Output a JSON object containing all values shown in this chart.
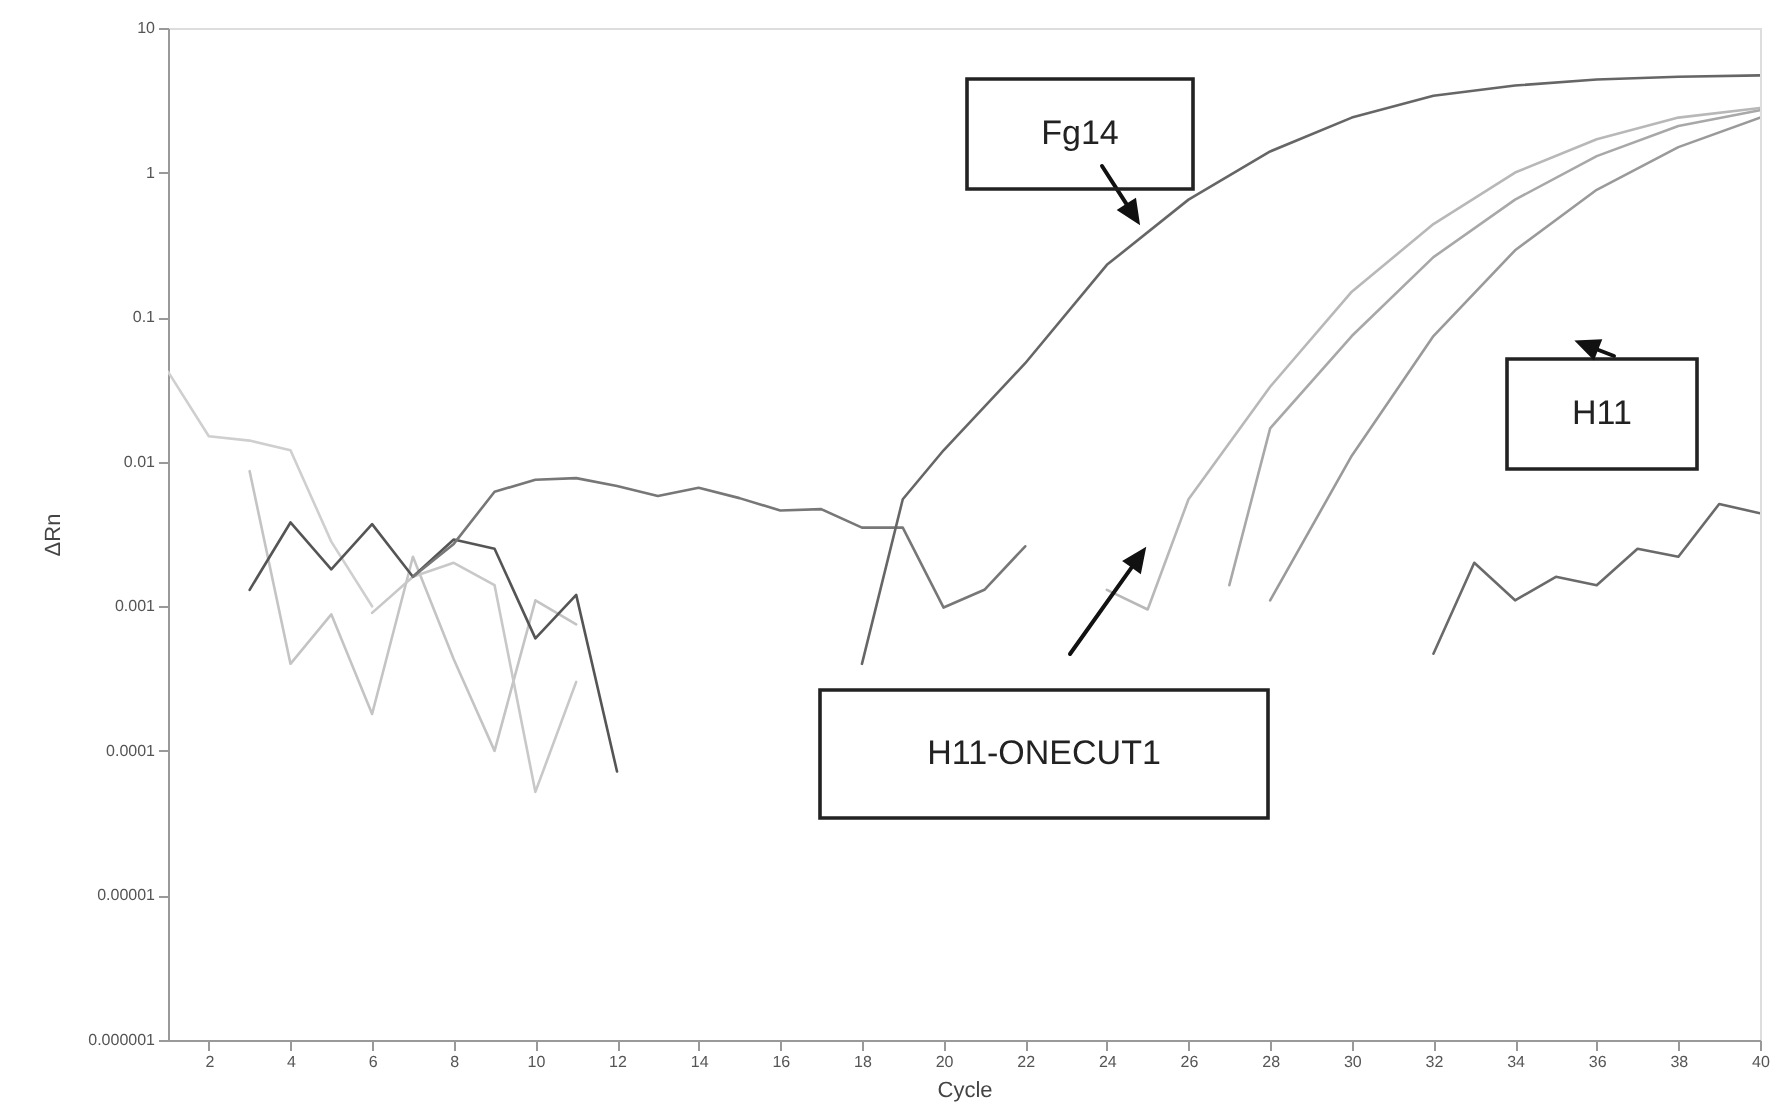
{
  "chart_data": {
    "type": "line",
    "xlabel": "Cycle",
    "ylabel": "ΔRn",
    "log": "y",
    "xlim": [
      1,
      40
    ],
    "xticks": [
      2,
      4,
      6,
      8,
      10,
      12,
      14,
      16,
      18,
      20,
      22,
      24,
      26,
      28,
      30,
      32,
      34,
      36,
      38,
      40
    ],
    "ylim": [
      1e-06,
      10
    ],
    "yticks": [
      {
        "value": 1e-06,
        "label": "0.000001"
      },
      {
        "value": 1e-05,
        "label": "0.00001"
      },
      0.0001,
      0.001,
      0.01,
      0.1,
      1,
      10
    ],
    "grid": false,
    "marker": "none",
    "line_style": "solid",
    "series": [
      {
        "color": "#cfcfcf",
        "x": [
          1,
          2,
          3,
          4,
          5,
          6
        ],
        "values": [
          0.042,
          0.015,
          0.014,
          0.012,
          0.0028,
          0.001
        ]
      },
      {
        "color": "#c4c4c4",
        "x": [
          3,
          4,
          5,
          6,
          7,
          8,
          9,
          10,
          11
        ],
        "values": [
          0.0086,
          0.0004,
          0.00088,
          0.00018,
          0.0022,
          0.00043,
          0.0001,
          0.0011,
          0.00075
        ]
      },
      {
        "color": "#c8c8c8",
        "x": [
          6,
          7,
          8,
          9,
          10,
          11
        ],
        "values": [
          0.0009,
          0.0016,
          0.002,
          0.0014,
          5.2e-05,
          0.0003
        ]
      },
      {
        "color": "#555555",
        "x": [
          3,
          4,
          5,
          6,
          7,
          8,
          9,
          10,
          11,
          12
        ],
        "values": [
          0.0013,
          0.0038,
          0.0018,
          0.0037,
          0.0016,
          0.0029,
          0.0025,
          0.0006,
          0.0012,
          7.2e-05
        ]
      },
      {
        "color": "#777777",
        "x": [
          7,
          8,
          9,
          10,
          11,
          12,
          13,
          14,
          15,
          16,
          17,
          18,
          19,
          20,
          21,
          22
        ],
        "values": [
          0.0016,
          0.0027,
          0.0062,
          0.0075,
          0.0077,
          0.0068,
          0.0058,
          0.0066,
          0.0056,
          0.0046,
          0.0047,
          0.0035,
          0.0035,
          0.00098,
          0.0013,
          0.0026
        ]
      },
      {
        "color": "#666666",
        "x": [
          18,
          19,
          20,
          22,
          24,
          26,
          28,
          30,
          32,
          34,
          36,
          38,
          40
        ],
        "values": [
          0.0004,
          0.0055,
          0.012,
          0.048,
          0.23,
          0.65,
          1.4,
          2.4,
          3.4,
          4.0,
          4.4,
          4.6,
          4.7
        ]
      },
      {
        "color": "#b8b8b8",
        "x": [
          24,
          25,
          26,
          28,
          30,
          32,
          34,
          36,
          38,
          40
        ],
        "values": [
          0.0013,
          0.00095,
          0.0055,
          0.033,
          0.15,
          0.44,
          1.0,
          1.7,
          2.4,
          2.8
        ]
      },
      {
        "color": "#a8a8a8",
        "x": [
          27,
          28,
          30,
          32,
          34,
          36,
          38,
          40
        ],
        "values": [
          0.0014,
          0.017,
          0.074,
          0.26,
          0.65,
          1.3,
          2.1,
          2.7
        ]
      },
      {
        "color": "#9a9a9a",
        "x": [
          28,
          30,
          32,
          34,
          36,
          38,
          40
        ],
        "values": [
          0.0011,
          0.011,
          0.074,
          0.29,
          0.76,
          1.5,
          2.4
        ]
      },
      {
        "color": "#6a6a6a",
        "x": [
          32,
          33,
          34,
          35,
          36,
          37,
          38,
          39,
          40
        ],
        "values": [
          0.00047,
          0.002,
          0.0011,
          0.0016,
          0.0014,
          0.0025,
          0.0022,
          0.0051,
          0.0044
        ]
      }
    ],
    "annotations": [
      "Fg14",
      "H11",
      "H11-ONECUT1"
    ]
  }
}
